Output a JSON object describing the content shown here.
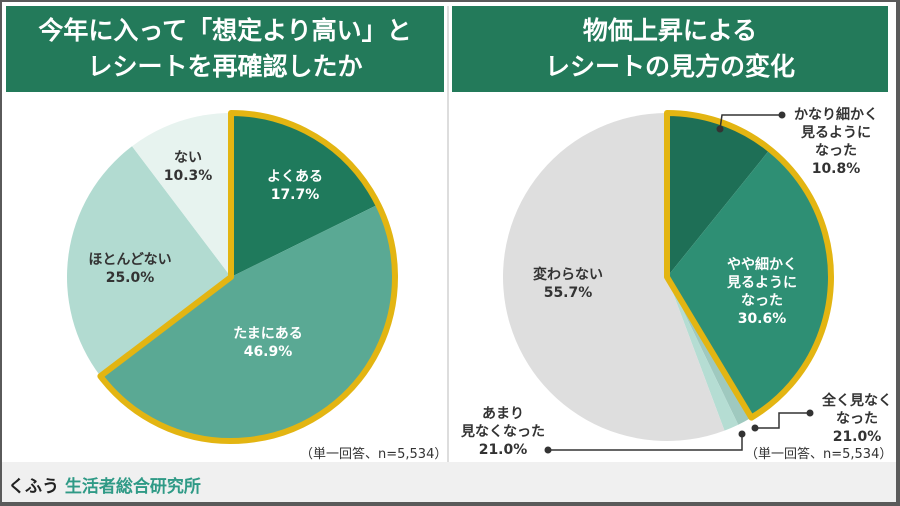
{
  "left": {
    "title_line1": "今年に入って「想定より高い」と",
    "title_line2": "レシートを再確認したか",
    "note": "（単一回答、n=5,534）"
  },
  "right": {
    "title_line1": "物価上昇による",
    "title_line2": "レシートの見方の変化",
    "note": "（単一回答、n=5,534）"
  },
  "footer": {
    "brand_prefix": "くふう",
    "brand_name": "生活者総合研究所"
  },
  "highlight_color": "#e3b512",
  "chart_data": [
    {
      "type": "pie",
      "title": "今年に入って「想定より高い」とレシートを再確認したか",
      "slices": [
        {
          "label": "よくある",
          "value": 17.7,
          "value_text": "17.7%",
          "color": "#1f7a5c",
          "highlight": true
        },
        {
          "label": "たまにある",
          "value": 46.9,
          "value_text": "46.9%",
          "color": "#5aa994",
          "highlight": true
        },
        {
          "label": "ほとんどない",
          "value": 25.0,
          "value_text": "25.0%",
          "color": "#b2dbd1",
          "highlight": false
        },
        {
          "label": "ない",
          "value": 10.3,
          "value_text": "10.3%",
          "color": "#e7f3ef",
          "highlight": false
        }
      ]
    },
    {
      "type": "pie",
      "title": "物価上昇によるレシートの見方の変化",
      "slices": [
        {
          "label": "かなり細かく見るようになった",
          "value": 10.8,
          "value_text": "10.8%",
          "color": "#1e6f56",
          "highlight": true
        },
        {
          "label": "やや細かく見るようになった",
          "value": 30.6,
          "value_text": "30.6%",
          "color": "#2e8f74",
          "highlight": true
        },
        {
          "label": "全く見なくなった",
          "value": 21.0,
          "value_text": "21.0%",
          "color": "#9fc9bf",
          "highlight": false
        },
        {
          "label": "あまり見なくなった",
          "value": 21.0,
          "value_text": "21.0%",
          "color": "#b5ddd3",
          "highlight": false
        },
        {
          "label": "変わらない",
          "value": 55.7,
          "value_text": "55.7%",
          "color": "#dedede",
          "highlight": false
        }
      ]
    }
  ]
}
